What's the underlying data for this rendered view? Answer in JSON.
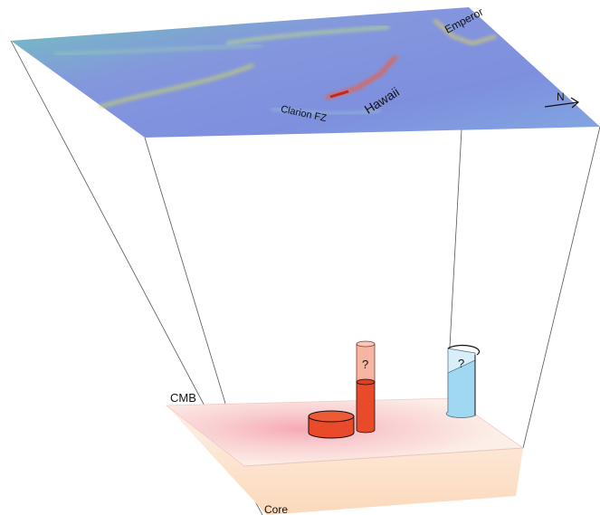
{
  "labels": {
    "emperor": "Emperor",
    "hawaii": "Hawaii",
    "clarion": "Clarion FZ",
    "north": "N",
    "cmb": "CMB",
    "core": "Core",
    "question_red": "?",
    "question_blue": "?"
  },
  "colors": {
    "seafloor_base": "#7b93dc",
    "seafloor_mid": "#78c8c0",
    "hotspot_red": "#e84a2a",
    "hotspot_red_light": "#f4b5a2",
    "plume_blue": "#9fd8f0",
    "plume_blue_light": "#d8effa",
    "cmb_pink": "#f9d5d2",
    "core_peach": "#fbe3cc"
  }
}
